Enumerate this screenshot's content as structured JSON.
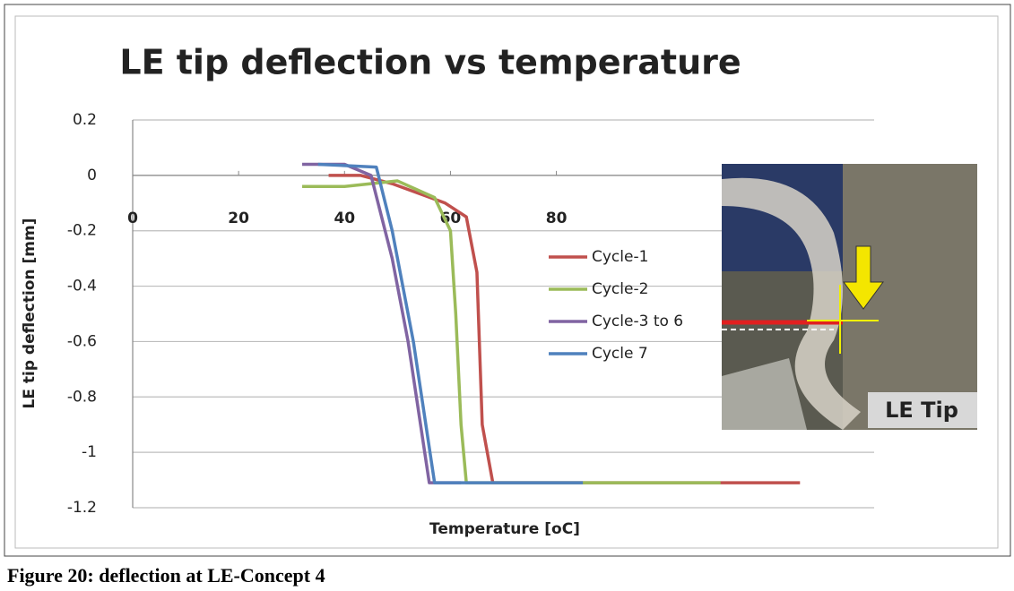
{
  "chart_data": {
    "type": "line",
    "title": "LE tip deflection vs temperature",
    "x_label": "Temperature [oC]",
    "y_label": "LE tip deflection [mm]",
    "xlim": [
      0,
      140
    ],
    "xticks": [
      0,
      20,
      40,
      60,
      80
    ],
    "ylim": [
      -1.2,
      0.2
    ],
    "yticks": [
      0.2,
      0,
      -0.2,
      -0.4,
      -0.6,
      -0.8,
      -1,
      -1.2
    ],
    "grid": true,
    "series": [
      {
        "name": "Cycle-1",
        "color": "#c0504d",
        "x": [
          37,
          43,
          49,
          59,
          63,
          65,
          66,
          68,
          126
        ],
        "values": [
          0,
          0,
          -0.03,
          -0.1,
          -0.15,
          -0.35,
          -0.9,
          -1.11,
          -1.11
        ]
      },
      {
        "name": "Cycle-2",
        "color": "#9bbb59",
        "x": [
          32,
          40,
          50,
          57,
          60,
          61,
          62,
          63,
          111
        ],
        "values": [
          -0.04,
          -0.04,
          -0.02,
          -0.08,
          -0.2,
          -0.5,
          -0.9,
          -1.11,
          -1.11
        ]
      },
      {
        "name": "Cycle-3 to 6",
        "color": "#8064a2",
        "x": [
          32,
          40,
          45,
          49,
          52,
          56,
          62
        ],
        "values": [
          0.04,
          0.04,
          0,
          -0.3,
          -0.6,
          -1.11,
          -1.11
        ]
      },
      {
        "name": "Cycle 7",
        "color": "#4f81bd",
        "x": [
          35,
          46,
          49,
          53,
          57,
          85
        ],
        "values": [
          0.04,
          0.03,
          -0.2,
          -0.6,
          -1.11,
          -1.11
        ]
      }
    ]
  },
  "inset": {
    "label": "LE Tip"
  },
  "caption": "Figure 20: deflection at LE-Concept 4"
}
